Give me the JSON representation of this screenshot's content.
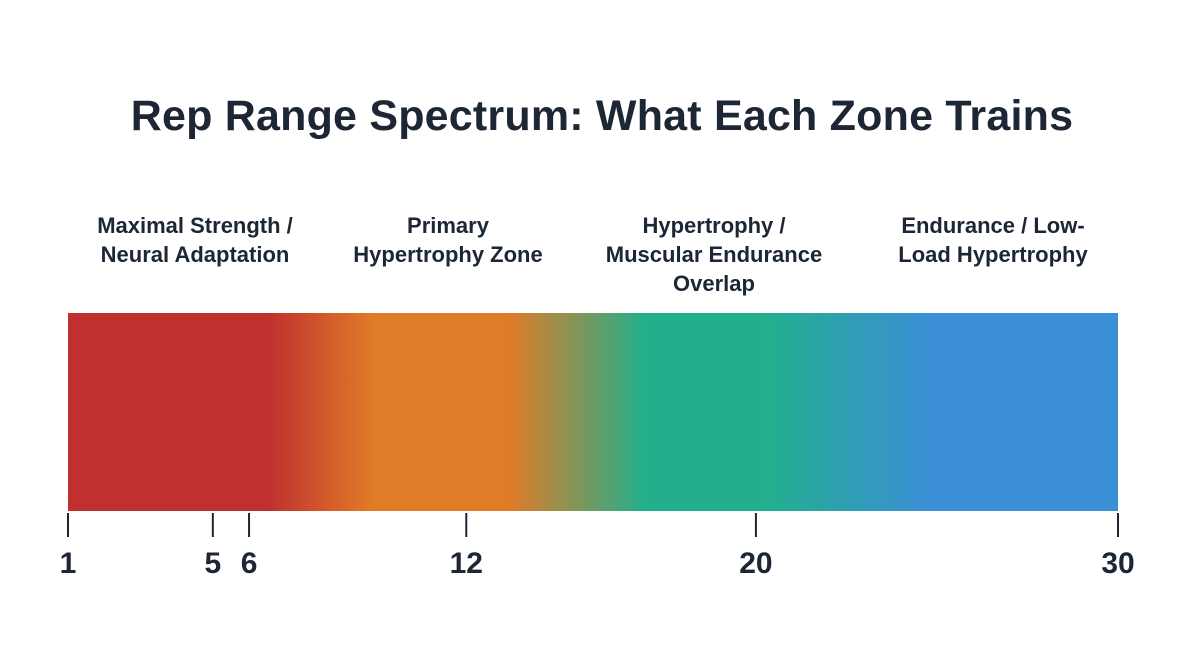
{
  "title": "Rep Range Spectrum: What Each Zone Trains",
  "zones": [
    {
      "label": "Maximal Strength / Neural Adaptation",
      "lines": [
        "Maximal Strength /",
        "Neural Adaptation"
      ]
    },
    {
      "label": "Primary Hypertrophy Zone",
      "lines": [
        "Primary",
        "Hypertrophy Zone"
      ]
    },
    {
      "label": "Hypertrophy / Muscular Endurance Overlap",
      "lines": [
        "Hypertrophy /",
        "Muscular Endurance",
        "Overlap"
      ]
    },
    {
      "label": "Endurance / Low-Load Hypertrophy",
      "lines": [
        "Endurance / Low-",
        "Load Hypertrophy"
      ]
    }
  ],
  "spectrum": {
    "min": 1,
    "max": 30,
    "ticks": [
      "1",
      "5",
      "6",
      "12",
      "20",
      "30"
    ],
    "tick_values": [
      1,
      5,
      6,
      12,
      20,
      30
    ],
    "colors": {
      "strength": "#c0302f",
      "hypertrophy": "#e07b27",
      "overlap": "#22b08c",
      "endurance": "#3b8fd6"
    }
  }
}
